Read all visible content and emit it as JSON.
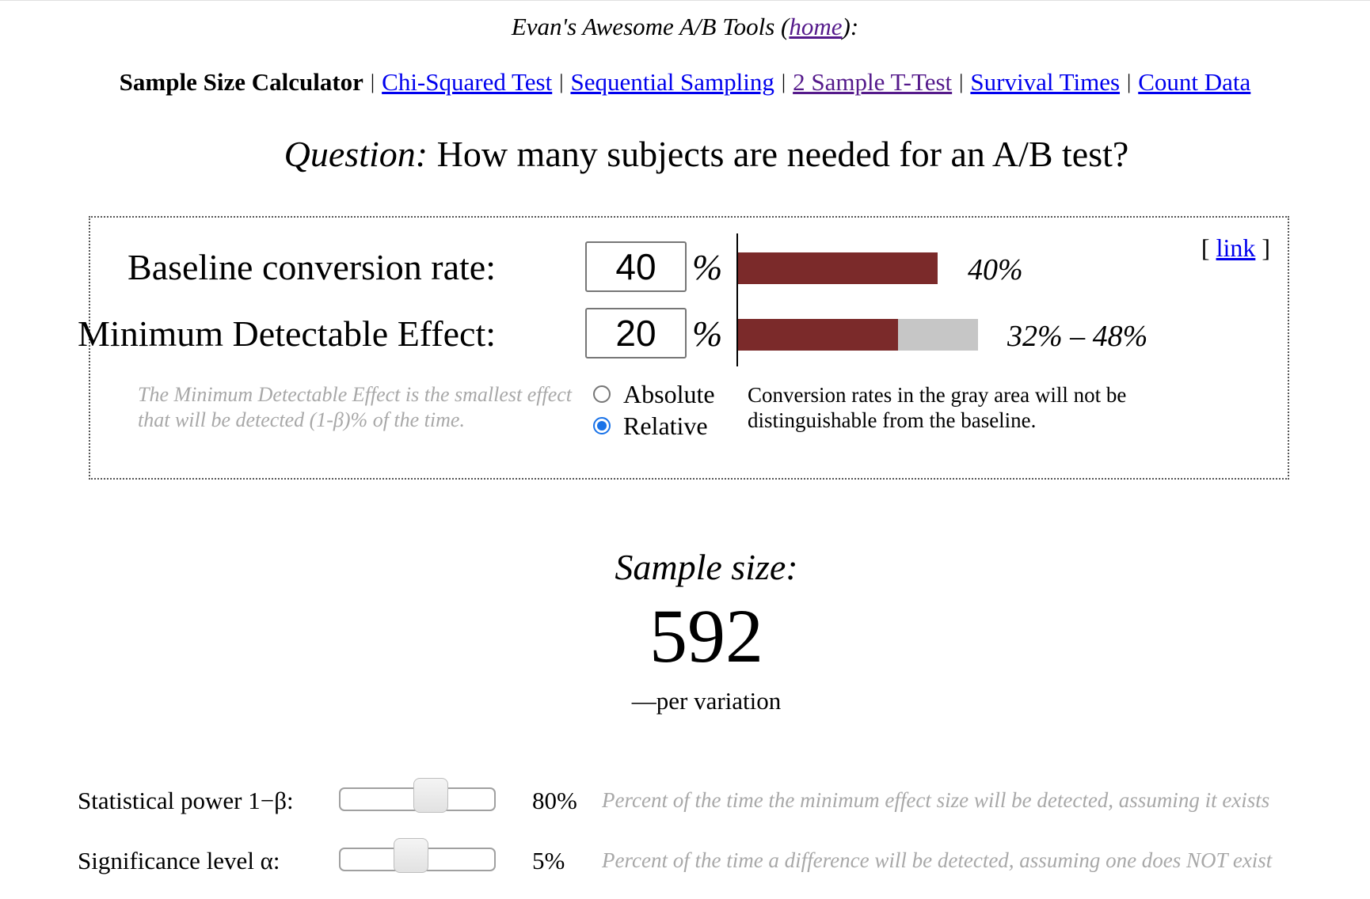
{
  "header": {
    "prefix": "Evan's Awesome A/B Tools (",
    "home_link": "home",
    "suffix": "):"
  },
  "nav": {
    "current": "Sample Size Calculator",
    "separator": "|",
    "links": [
      "Chi-Squared Test",
      "Sequential Sampling",
      "2 Sample T-Test",
      "Survival Times",
      "Count Data"
    ]
  },
  "question": {
    "prefix": "Question:",
    "text": " How many subjects are needed for an A/B test?"
  },
  "panel": {
    "link_open": "[ ",
    "link_text": "link",
    "link_close": " ]",
    "baseline": {
      "label": "Baseline conversion rate:",
      "value": "40",
      "unit": "%",
      "bar_text": "40%",
      "bar_fraction": 0.4
    },
    "mde": {
      "label": "Minimum Detectable Effect:",
      "value": "20",
      "unit": "%",
      "bar_text": "32% – 48%",
      "range_low": 0.32,
      "range_high": 0.48
    },
    "mde_note": "The Minimum Detectable Effect is the smallest effect that will be detected (1-β)% of the time.",
    "mode_options": [
      "Absolute",
      "Relative"
    ],
    "mode_selected": "Relative",
    "gray_note": "Conversion rates in the gray area will not be distinguishable from the baseline."
  },
  "result": {
    "title": "Sample size:",
    "value": "592",
    "subtitle": "—per variation"
  },
  "params": {
    "power": {
      "label": "Statistical power 1−β:",
      "value": "80%",
      "slider_fraction": 0.8,
      "desc": "Percent of the time the minimum effect size will be detected, assuming it exists"
    },
    "alpha": {
      "label": "Significance level α:",
      "value": "5%",
      "slider_fraction": 0.05,
      "desc": "Percent of the time a difference will be detected, assuming one does NOT exist"
    }
  },
  "colors": {
    "bar_red": "#7b2a2a",
    "bar_gray": "#c6c6c6",
    "link": "#0000ee",
    "visited": "#551a8b",
    "muted_text": "#a8a8a8",
    "radio_accent": "#1a73e8"
  }
}
